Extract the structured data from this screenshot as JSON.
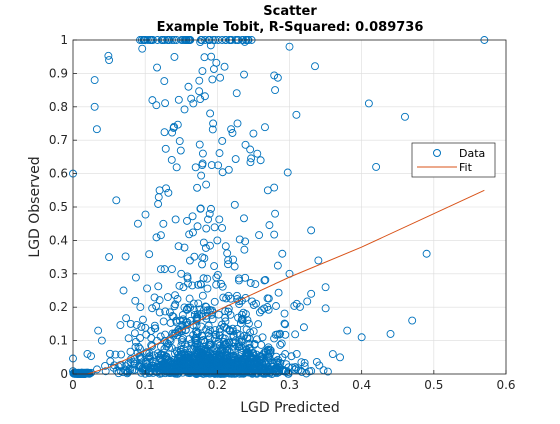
{
  "chart_data": {
    "type": "scatter",
    "title": "Scatter",
    "subtitle": "Example Tobit, R-Squared: 0.089736",
    "xlabel": "LGD Predicted",
    "ylabel": "LGD Observed",
    "xlim": [
      0,
      0.6
    ],
    "ylim": [
      0,
      1
    ],
    "xticks": [
      "0",
      "0.1",
      "0.2",
      "0.3",
      "0.4",
      "0.5",
      "0.6"
    ],
    "yticks": [
      "0",
      "0.1",
      "0.2",
      "0.3",
      "0.4",
      "0.5",
      "0.6",
      "0.7",
      "0.8",
      "0.9",
      "1"
    ],
    "grid": true,
    "legend_position": "right",
    "series": [
      {
        "name": "Data",
        "marker": "circle",
        "color": "#0072bd",
        "points": [
          [
            0.57,
            1.0
          ],
          [
            0.49,
            0.36
          ],
          [
            0.46,
            0.77
          ],
          [
            0.42,
            0.62
          ],
          [
            0.41,
            0.81
          ],
          [
            0.47,
            0.16
          ],
          [
            0.44,
            0.12
          ],
          [
            0.38,
            0.13
          ],
          [
            0.4,
            0.11
          ],
          [
            0.37,
            0.05
          ],
          [
            0.3,
            0.98
          ],
          [
            0.28,
            0.85
          ],
          [
            0.22,
            1.0
          ],
          [
            0.24,
            1.0
          ],
          [
            0.16,
            1.0
          ],
          [
            0.1,
            1.0
          ],
          [
            0.05,
            0.94
          ],
          [
            0.03,
            0.88
          ],
          [
            0.03,
            0.8
          ],
          [
            0.0,
            0.6
          ],
          [
            0.06,
            0.52
          ],
          [
            0.09,
            0.45
          ],
          [
            0.12,
            0.55
          ],
          [
            0.18,
            0.66
          ],
          [
            0.27,
            0.55
          ],
          [
            0.33,
            0.43
          ],
          [
            0.34,
            0.34
          ],
          [
            0.35,
            0.26
          ],
          [
            0.33,
            0.24
          ],
          [
            0.31,
            0.06
          ],
          [
            0.11,
            0.82
          ],
          [
            0.14,
            0.74
          ],
          [
            0.16,
            0.86
          ],
          [
            0.19,
            0.78
          ],
          [
            0.21,
            0.92
          ],
          [
            0.25,
            0.72
          ],
          [
            0.26,
            0.64
          ],
          [
            0.28,
            0.48
          ],
          [
            0.29,
            0.36
          ],
          [
            0.3,
            0.3
          ],
          [
            0.31,
            0.21
          ],
          [
            0.32,
            0.14
          ],
          [
            0.05,
            0.35
          ],
          [
            0.07,
            0.25
          ],
          [
            0.08,
            0.15
          ],
          [
            0.04,
            0.1
          ],
          [
            0.02,
            0.06
          ],
          [
            0.2,
            0.4
          ],
          [
            0.15,
            0.3
          ],
          [
            0.23,
            0.28
          ]
        ]
      },
      {
        "name": "Fit",
        "type": "line",
        "color": "#d95319",
        "points": [
          [
            0.0,
            0.0
          ],
          [
            0.02,
            0.0
          ],
          [
            0.05,
            0.02
          ],
          [
            0.1,
            0.07
          ],
          [
            0.15,
            0.13
          ],
          [
            0.2,
            0.19
          ],
          [
            0.25,
            0.24
          ],
          [
            0.3,
            0.29
          ],
          [
            0.4,
            0.38
          ],
          [
            0.5,
            0.48
          ],
          [
            0.57,
            0.55
          ]
        ]
      }
    ]
  }
}
